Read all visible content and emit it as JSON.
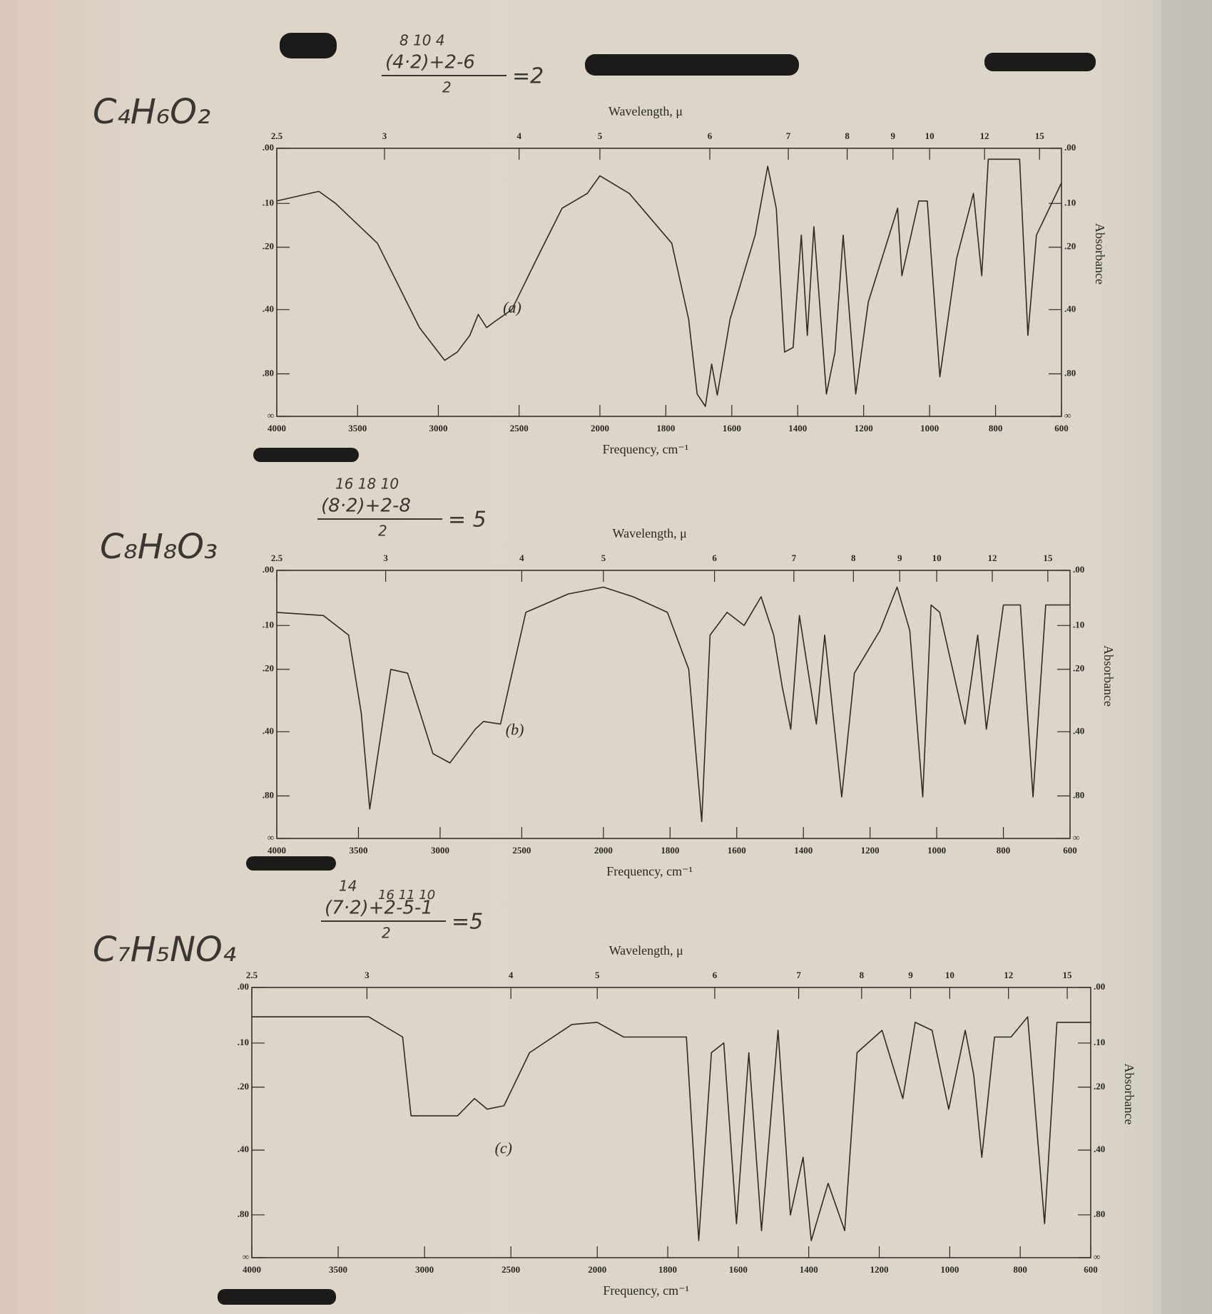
{
  "chart_data": [
    {
      "type": "line",
      "formula": "C₄H₆O₂",
      "work": {
        "above": "8     10  4",
        "numerator": "(4·2)+2-6",
        "denominator": "2",
        "result": "=2"
      },
      "top_label": "Wavelength, μ",
      "xlabel": "Frequency, cm⁻¹",
      "ylabel": "Absorbance",
      "panel_label": "(a)",
      "xlim": [
        4000,
        600
      ],
      "x_scale_break": 2000,
      "xticks": [
        4000,
        3500,
        3000,
        2500,
        2000,
        1800,
        1600,
        1400,
        1200,
        1000,
        800,
        600
      ],
      "x2ticks": [
        2.5,
        3,
        4,
        5,
        6,
        7,
        8,
        9,
        10,
        12,
        15
      ],
      "ylim": [
        0,
        null
      ],
      "yscale": "absorbance",
      "yticks": [
        {
          "value": 0,
          "label": ".00"
        },
        {
          "value": 0.1,
          "label": ".10"
        },
        {
          "value": 0.2,
          "label": ".20"
        },
        {
          "value": 0.4,
          "label": ".40"
        },
        {
          "value": 0.8,
          "label": ".80"
        },
        {
          "value": null,
          "label": "∞"
        }
      ],
      "color": "#2e2a26",
      "x": [
        4000,
        3740,
        3636,
        3377,
        3117,
        2961,
        2883,
        2805,
        2753,
        2701,
        2649,
        2545,
        2390,
        2234,
        2078,
        2000,
        1911,
        1782,
        1731,
        1705,
        1680,
        1661,
        1644,
        1605,
        1529,
        1491,
        1465,
        1440,
        1414,
        1389,
        1371,
        1351,
        1313,
        1287,
        1262,
        1224,
        1186,
        1097,
        1084,
        1033,
        1007,
        969,
        918,
        867,
        842,
        822,
        727,
        702,
        676,
        600
      ],
      "values": [
        0.095,
        0.076,
        0.1,
        0.19,
        0.48,
        0.68,
        0.62,
        0.52,
        0.42,
        0.48,
        0.45,
        0.4,
        0.23,
        0.11,
        0.08,
        0.047,
        0.08,
        0.19,
        0.44,
        1.08,
        1.43,
        0.71,
        1.1,
        0.44,
        0.17,
        0.03,
        0.11,
        0.62,
        0.59,
        0.17,
        0.52,
        0.15,
        1.08,
        0.62,
        0.17,
        1.08,
        0.37,
        0.11,
        0.28,
        0.095,
        0.095,
        0.83,
        0.23,
        0.08,
        0.28,
        0.018,
        0.018,
        0.52,
        0.17,
        0.06
      ]
    },
    {
      "type": "line",
      "formula": "C₈H₈O₃",
      "work": {
        "above": "16    18 10",
        "numerator": "(8·2)+2-8",
        "denominator": "2",
        "result": "= 5"
      },
      "top_label": "Wavelength, μ",
      "xlabel": "Frequency, cm⁻¹",
      "ylabel": "Absorbance",
      "panel_label": "(b)",
      "xlim": [
        4000,
        600
      ],
      "x_scale_break": 2000,
      "xticks": [
        4000,
        3500,
        3000,
        2500,
        2000,
        1800,
        1600,
        1400,
        1200,
        1000,
        800,
        600
      ],
      "x2ticks": [
        2.5,
        3,
        4,
        5,
        6,
        7,
        8,
        9,
        10,
        12,
        15
      ],
      "ylim": [
        0,
        null
      ],
      "yscale": "absorbance",
      "yticks": [
        {
          "value": 0,
          "label": ".00"
        },
        {
          "value": 0.1,
          "label": ".10"
        },
        {
          "value": 0.2,
          "label": ".20"
        },
        {
          "value": 0.4,
          "label": ".40"
        },
        {
          "value": 0.8,
          "label": ".80"
        },
        {
          "value": null,
          "label": "∞"
        }
      ],
      "color": "#2e2a26",
      "x": [
        4000,
        3715,
        3560,
        3483,
        3431,
        3380,
        3302,
        3199,
        3044,
        2940,
        2785,
        2734,
        2630,
        2475,
        2216,
        2000,
        1911,
        1808,
        1744,
        1705,
        1680,
        1629,
        1578,
        1527,
        1489,
        1463,
        1438,
        1412,
        1361,
        1336,
        1285,
        1247,
        1170,
        1119,
        1081,
        1042,
        1017,
        991,
        915,
        877,
        851,
        800,
        749,
        711,
        673,
        622,
        600
      ],
      "values": [
        0.074,
        0.08,
        0.12,
        0.33,
        0.96,
        0.5,
        0.2,
        0.21,
        0.5,
        0.55,
        0.39,
        0.36,
        0.37,
        0.074,
        0.04,
        0.028,
        0.045,
        0.074,
        0.2,
        1.2,
        0.12,
        0.074,
        0.1,
        0.045,
        0.12,
        0.25,
        0.39,
        0.08,
        0.37,
        0.12,
        0.81,
        0.21,
        0.11,
        0.028,
        0.11,
        0.81,
        0.06,
        0.074,
        0.37,
        0.12,
        0.39,
        0.06,
        0.06,
        0.81,
        0.06,
        0.06,
        0.06
      ]
    },
    {
      "type": "line",
      "formula": "C₇H₅NO₄",
      "work": {
        "above": "14",
        "above2": "16 11 10",
        "numerator": "(7·2)+2-5-1",
        "denominator": "2",
        "result": "=5"
      },
      "top_label": "Wavelength, μ",
      "xlabel": "Frequency, cm⁻¹",
      "ylabel": "Absorbance",
      "panel_label": "(c)",
      "xlim": [
        4000,
        600
      ],
      "x_scale_break": 2000,
      "xticks": [
        4000,
        3500,
        3000,
        2500,
        2000,
        1800,
        1600,
        1400,
        1200,
        1000,
        800,
        600
      ],
      "x2ticks": [
        2.5,
        3,
        4,
        5,
        6,
        7,
        8,
        9,
        10,
        12,
        15
      ],
      "ylim": [
        0,
        null
      ],
      "yscale": "absorbance",
      "yticks": [
        {
          "value": 0,
          "label": ".00"
        },
        {
          "value": 0.1,
          "label": ".10"
        },
        {
          "value": 0.2,
          "label": ".20"
        },
        {
          "value": 0.4,
          "label": ".40"
        },
        {
          "value": 0.8,
          "label": ".80"
        },
        {
          "value": null,
          "label": "∞"
        }
      ],
      "color": "#2e2a26",
      "x": [
        4000,
        3323,
        3127,
        3078,
        2980,
        2809,
        2711,
        2637,
        2540,
        2392,
        2147,
        2000,
        1925,
        1830,
        1747,
        1712,
        1676,
        1641,
        1605,
        1570,
        1534,
        1487,
        1452,
        1416,
        1393,
        1345,
        1298,
        1263,
        1192,
        1133,
        1098,
        1050,
        1003,
        956,
        932,
        909,
        873,
        826,
        779,
        731,
        696,
        637,
        600
      ],
      "values": [
        0.05,
        0.05,
        0.088,
        0.28,
        0.28,
        0.28,
        0.23,
        0.26,
        0.25,
        0.12,
        0.064,
        0.06,
        0.088,
        0.088,
        0.088,
        1.2,
        0.12,
        0.1,
        0.9,
        0.12,
        1.0,
        0.075,
        0.8,
        0.43,
        1.2,
        0.56,
        1.0,
        0.12,
        0.075,
        0.23,
        0.06,
        0.075,
        0.26,
        0.075,
        0.17,
        0.43,
        0.088,
        0.088,
        0.05,
        0.9,
        0.06,
        0.06,
        0.06
      ]
    }
  ]
}
